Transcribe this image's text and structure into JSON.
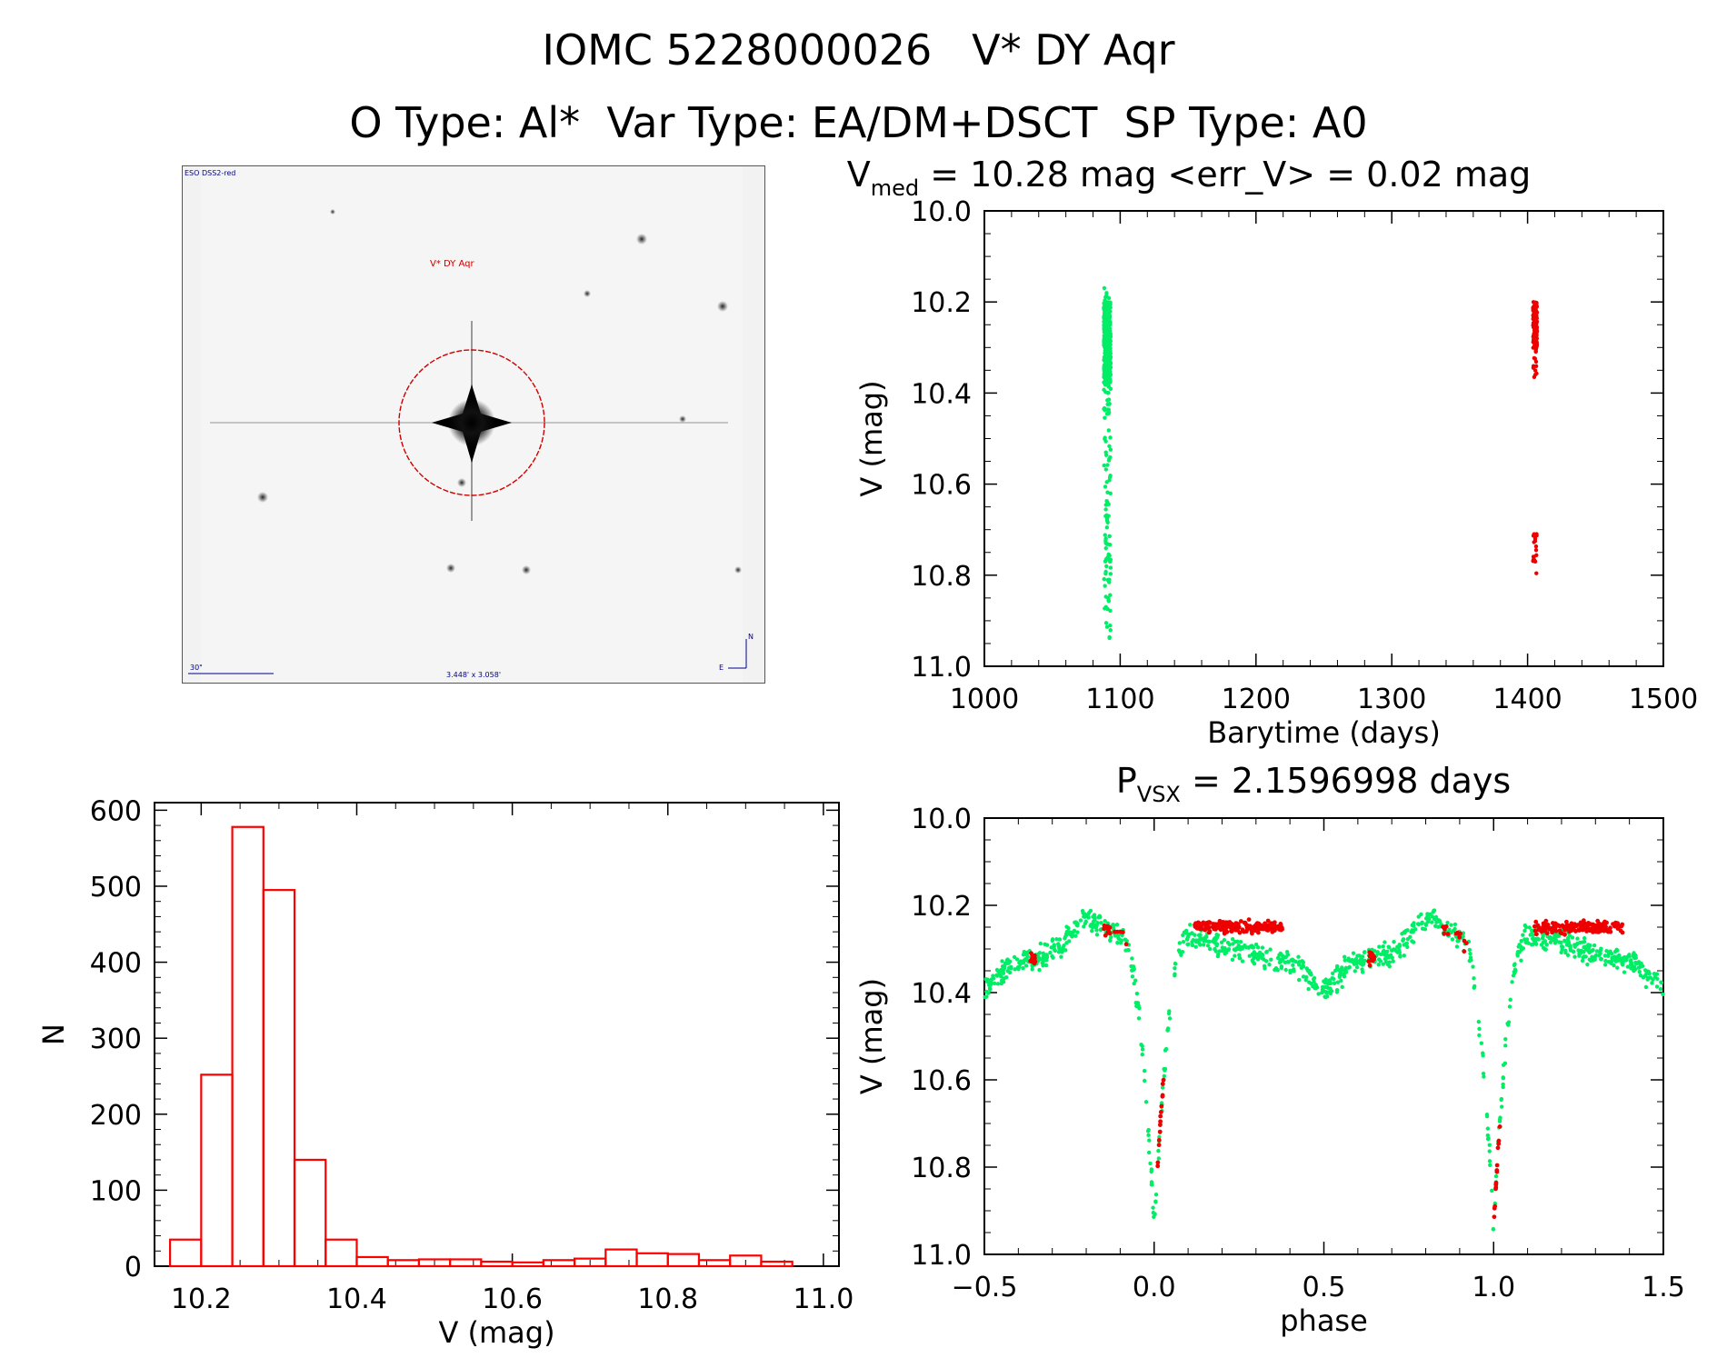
{
  "header": {
    "title": "IOMC 5228000026   V* DY Aqr",
    "subtitle": "O Type: Al*  Var Type: EA/DM+DSCT  SP Type: A0"
  },
  "finder": {
    "survey_label": "ESO DSS2-red",
    "star_label": "V* DY Aqr",
    "scale_label": "30\"",
    "fov_label": "3.448' x 3.058'",
    "north_label": "N",
    "east_label": "E"
  },
  "colors": {
    "ground": "#00ee66",
    "space": "#ee0000",
    "hist": "#ff0000",
    "circle": "#cc0000"
  },
  "chart_data": [
    {
      "type": "scatter",
      "title_main": "V",
      "title_sub": "med",
      "title_rest": " = 10.28 mag <err_V> = 0.02 mag",
      "xlabel": "Barytime (days)",
      "ylabel": "V (mag)",
      "xlim": [
        1000,
        1500
      ],
      "ylim": [
        11.0,
        10.0
      ],
      "xticks": [
        "1000",
        "1100",
        "1200",
        "1300",
        "1400",
        "1500"
      ],
      "yticks": [
        "10.0",
        "10.2",
        "10.4",
        "10.6",
        "10.8",
        "11.0"
      ],
      "series": [
        {
          "color": "green",
          "x_range": [
            1088,
            1093
          ],
          "y_range": [
            10.16,
            10.94
          ]
        },
        {
          "color": "red",
          "x_range": [
            1404,
            1407
          ],
          "y_range": [
            10.2,
            10.37
          ],
          "extra_y_range": [
            10.7,
            10.81
          ]
        }
      ]
    },
    {
      "type": "bar",
      "xlabel": "V (mag)",
      "ylabel": "N",
      "xlim": [
        10.14,
        11.02
      ],
      "ylim": [
        0,
        610
      ],
      "xticks": [
        "10.2",
        "10.4",
        "10.6",
        "10.8",
        "11.0"
      ],
      "yticks": [
        "0",
        "100",
        "200",
        "300",
        "400",
        "500",
        "600"
      ],
      "bin_width": 0.04,
      "bin_starts": [
        10.16,
        10.2,
        10.24,
        10.28,
        10.32,
        10.36,
        10.4,
        10.44,
        10.48,
        10.52,
        10.56,
        10.6,
        10.64,
        10.68,
        10.72,
        10.76,
        10.8,
        10.84,
        10.88,
        10.92
      ],
      "values": [
        35,
        252,
        578,
        495,
        140,
        35,
        12,
        8,
        9,
        9,
        6,
        5,
        8,
        10,
        22,
        17,
        16,
        8,
        14,
        6
      ]
    },
    {
      "type": "scatter",
      "title_main": "P",
      "title_sub": "VSX",
      "title_rest": " = 2.1596998 days",
      "xlabel": "phase",
      "ylabel": "V (mag)",
      "xlim": [
        -0.5,
        1.5
      ],
      "ylim": [
        11.0,
        10.0
      ],
      "xticks": [
        "−0.5",
        "0.0",
        "0.5",
        "1.0",
        "1.5"
      ],
      "yticks": [
        "10.0",
        "10.2",
        "10.4",
        "10.6",
        "10.8",
        "11.0"
      ],
      "period_days": 2.1596998,
      "primary_minimum_mag": 10.93,
      "maximum_mag": 10.2,
      "secondary_minimum_mag": 10.35
    }
  ]
}
